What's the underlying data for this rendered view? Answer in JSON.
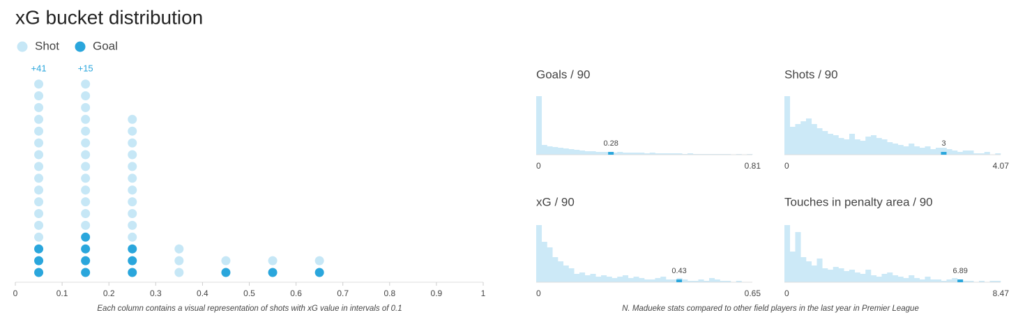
{
  "chart_data": [
    {
      "type": "dot",
      "title": "xG bucket distribution",
      "xlabel": "Each column contains a visual representation of shots with xG value in intervals of 0.1",
      "x": [
        0.05,
        0.15,
        0.25,
        0.35,
        0.45,
        0.55,
        0.65
      ],
      "series": [
        {
          "name": "Shot",
          "color": "#c6e7f6",
          "values": [
            14,
            13,
            11,
            3,
            1,
            1,
            1
          ]
        },
        {
          "name": "Goal",
          "color": "#2aa6dc",
          "values": [
            3,
            4,
            3,
            0,
            1,
            1,
            1
          ]
        }
      ],
      "hidden_shots": [
        41,
        15,
        null,
        null,
        null,
        null,
        null
      ],
      "hidden_shots_labels": [
        "+41",
        "+15",
        null,
        null,
        null,
        null,
        null
      ],
      "xlim": [
        0,
        1
      ],
      "xticks": [
        0,
        0.1,
        0.2,
        0.3,
        0.4,
        0.5,
        0.6,
        0.7,
        0.8,
        0.9,
        1
      ]
    },
    {
      "type": "histogram",
      "title": "Goals / 90",
      "color": "#cce9f7",
      "marker_color": "#2aa6dc",
      "values": [
        84,
        14,
        12,
        11,
        10,
        9,
        8,
        7,
        6,
        5,
        5,
        4,
        4,
        4,
        3,
        4,
        3,
        3,
        3,
        3,
        2,
        3,
        2,
        2,
        2,
        2,
        2,
        1,
        2,
        1,
        1,
        1,
        1,
        1,
        1,
        1,
        0,
        1,
        0,
        1
      ],
      "xlim": [
        0,
        0.81
      ],
      "xticks": [
        0,
        0.81
      ],
      "marker": 0.28
    },
    {
      "type": "histogram",
      "title": "Shots / 90",
      "color": "#cce9f7",
      "marker_color": "#2aa6dc",
      "values": [
        84,
        40,
        44,
        48,
        52,
        44,
        38,
        34,
        30,
        28,
        24,
        22,
        30,
        22,
        20,
        26,
        28,
        24,
        22,
        18,
        16,
        14,
        12,
        16,
        12,
        10,
        12,
        8,
        10,
        10,
        8,
        6,
        4,
        6,
        6,
        2,
        2,
        4,
        0,
        2
      ],
      "xlim": [
        0,
        4.07
      ],
      "xticks": [
        0,
        4.07
      ],
      "marker": 3
    },
    {
      "type": "histogram",
      "title": "xG / 90",
      "color": "#cce9f7",
      "marker_color": "#2aa6dc",
      "values": [
        82,
        58,
        50,
        36,
        30,
        24,
        20,
        12,
        14,
        10,
        12,
        8,
        10,
        8,
        6,
        8,
        10,
        6,
        8,
        6,
        4,
        4,
        6,
        8,
        4,
        4,
        6,
        4,
        2,
        2,
        4,
        2,
        6,
        4,
        2,
        2,
        0,
        2,
        0,
        0
      ],
      "xlim": [
        0,
        0.65
      ],
      "xticks": [
        0,
        0.65
      ],
      "marker": 0.43
    },
    {
      "type": "histogram",
      "title": "Touches in penalty area / 90",
      "color": "#cce9f7",
      "marker_color": "#2aa6dc",
      "values": [
        82,
        44,
        72,
        36,
        30,
        24,
        34,
        20,
        18,
        22,
        20,
        16,
        18,
        14,
        12,
        18,
        10,
        8,
        12,
        14,
        10,
        8,
        6,
        10,
        6,
        4,
        8,
        4,
        4,
        2,
        4,
        6,
        4,
        2,
        2,
        0,
        2,
        0,
        2,
        2
      ],
      "xlim": [
        0,
        8.47
      ],
      "xticks": [
        0,
        8.47
      ],
      "marker": 6.89
    }
  ],
  "histograms_caption": "N. Madueke stats compared to other field players in the last year in Premier League"
}
